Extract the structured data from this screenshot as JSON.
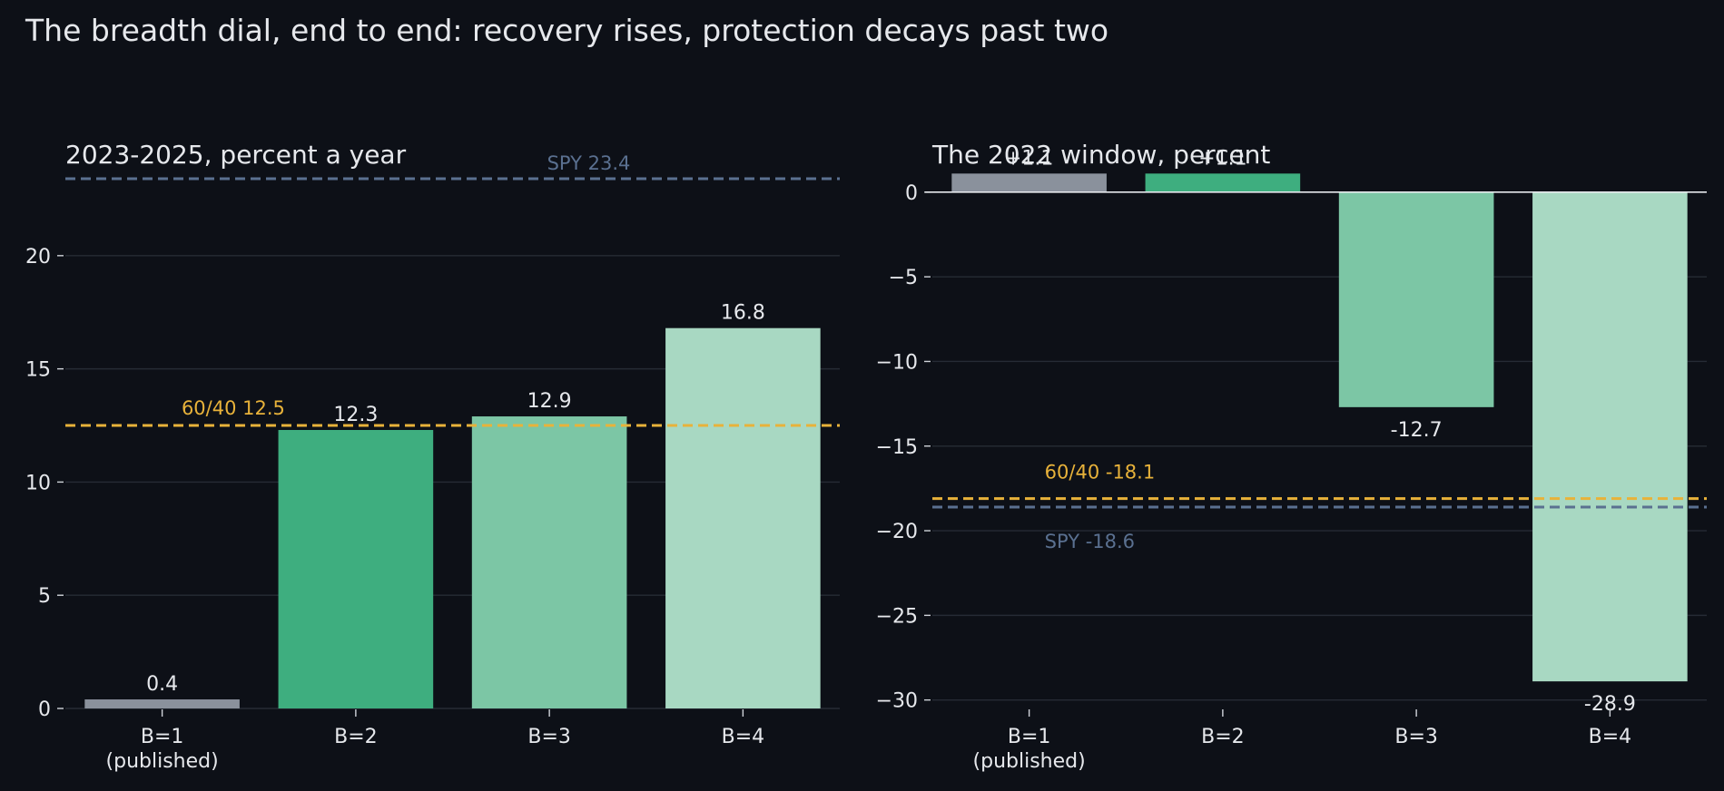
{
  "figure": {
    "suptitle": "The breadth dial, end to end: recovery rises, protection decays past two"
  },
  "chart_data": [
    {
      "type": "bar",
      "title": "2023-2025, percent a year",
      "categories": [
        "B=1\n(published)",
        "B=2",
        "B=3",
        "B=4"
      ],
      "values": [
        0.4,
        12.3,
        12.9,
        16.8
      ],
      "data_labels": [
        "0.4",
        "12.3",
        "12.9",
        "16.8"
      ],
      "bar_colors": [
        "#8a919c",
        "#3eae7f",
        "#7cc6a5",
        "#a8d8c2"
      ],
      "ylim": [
        0,
        24
      ],
      "yticks": [
        0,
        5,
        10,
        15,
        20
      ],
      "grid": true,
      "reference_lines": [
        {
          "label": "SPY 23.4",
          "value": 23.4,
          "color": "#5a7090"
        },
        {
          "label": "60/40 12.5",
          "value": 12.5,
          "color": "#e8b23a"
        }
      ]
    },
    {
      "type": "bar",
      "title": "The 2022 window, percent",
      "categories": [
        "B=1\n(published)",
        "B=2",
        "B=3",
        "B=4"
      ],
      "values": [
        1.1,
        1.1,
        -12.7,
        -28.9
      ],
      "data_labels": [
        "+1.1",
        "+1.1",
        "-12.7",
        "-28.9"
      ],
      "bar_colors": [
        "#8a919c",
        "#3eae7f",
        "#7cc6a5",
        "#a8d8c2"
      ],
      "ylim": [
        -30.5,
        1.6
      ],
      "yticks": [
        0,
        -5,
        -10,
        -15,
        -20,
        -25,
        -30
      ],
      "grid": true,
      "zero_line": true,
      "reference_lines": [
        {
          "label": "60/40 -18.1",
          "value": -18.1,
          "color": "#e8b23a"
        },
        {
          "label": "SPY -18.6",
          "value": -18.6,
          "color": "#5a7090"
        }
      ]
    }
  ]
}
